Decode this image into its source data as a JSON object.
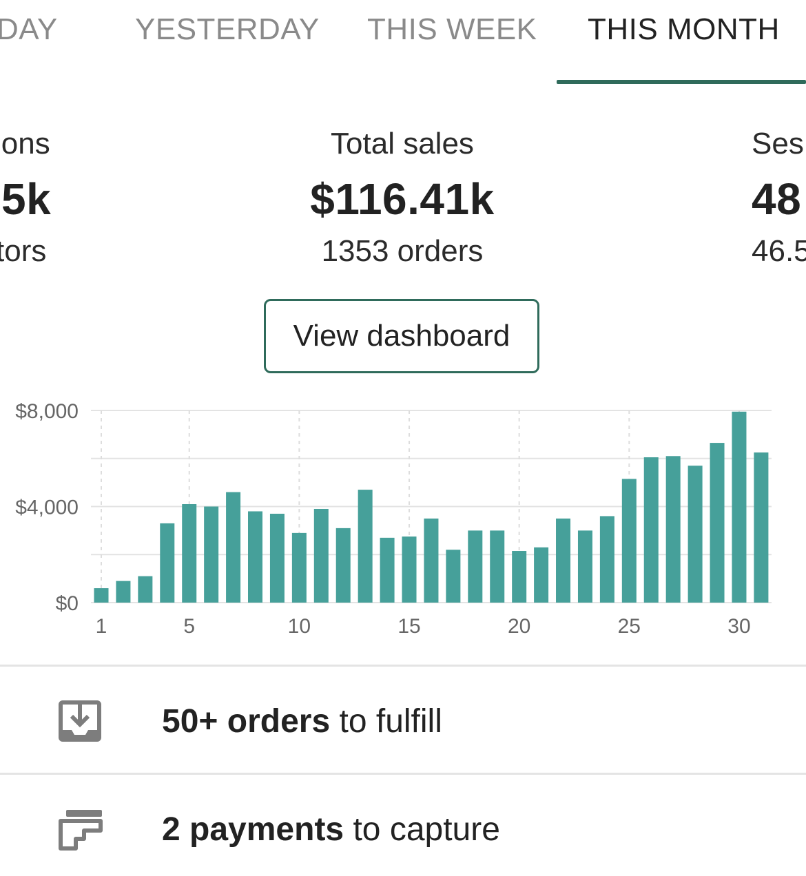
{
  "tabs": [
    {
      "label": "TODAY",
      "visible_label": "DAY",
      "active": false
    },
    {
      "label": "YESTERDAY",
      "active": false
    },
    {
      "label": "THIS WEEK",
      "active": false
    },
    {
      "label": "THIS MONTH",
      "active": true
    }
  ],
  "metrics": {
    "left": {
      "label": "ions",
      "value": "5k",
      "sub": "tors"
    },
    "total_sales": {
      "label": "Total sales",
      "value": "$116.41k",
      "sub": "1353 orders"
    },
    "right": {
      "label": "Ses",
      "value": "48",
      "sub": "46.5"
    }
  },
  "view_dashboard_label": "View dashboard",
  "colors": {
    "accent": "#2f6b5b",
    "bar": "#46a09a"
  },
  "chart_data": {
    "type": "bar",
    "x": [
      1,
      2,
      3,
      4,
      5,
      6,
      7,
      8,
      9,
      10,
      11,
      12,
      13,
      14,
      15,
      16,
      17,
      18,
      19,
      20,
      21,
      22,
      23,
      24,
      25,
      26,
      27,
      28,
      29,
      30,
      31
    ],
    "values": [
      600,
      900,
      1100,
      3300,
      4100,
      4000,
      4600,
      3800,
      3700,
      2900,
      3900,
      3100,
      4700,
      2700,
      2750,
      3500,
      2200,
      3000,
      3000,
      2150,
      2300,
      3500,
      3000,
      3600,
      5150,
      6050,
      6100,
      5700,
      6650,
      7950,
      6250
    ],
    "y_tick_labels": [
      "$0",
      "$4,000",
      "$8,000"
    ],
    "y_tick_values": [
      0,
      4000,
      8000
    ],
    "x_tick_labels": [
      "1",
      "5",
      "10",
      "15",
      "20",
      "25",
      "30"
    ],
    "x_tick_values": [
      1,
      5,
      10,
      15,
      20,
      25,
      30
    ],
    "ylim": [
      0,
      8000
    ],
    "grid": true
  },
  "tasks": {
    "orders": {
      "bold": "50+ orders",
      "rest": " to fulfill",
      "icon": "inbox-download-icon"
    },
    "payments": {
      "bold": "2 payments",
      "rest": " to capture",
      "icon": "card-capture-icon"
    }
  }
}
